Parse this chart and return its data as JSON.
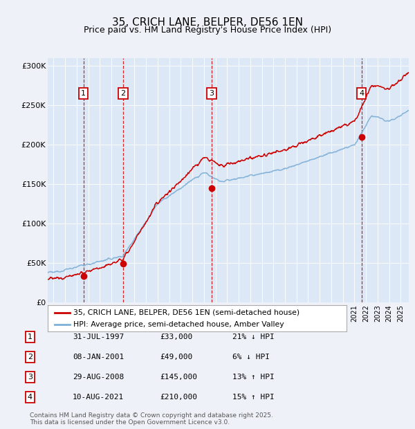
{
  "title_line1": "35, CRICH LANE, BELPER, DE56 1EN",
  "title_line2": "Price paid vs. HM Land Registry's House Price Index (HPI)",
  "ylim": [
    0,
    310000
  ],
  "yticks": [
    0,
    50000,
    100000,
    150000,
    200000,
    250000,
    300000
  ],
  "ytick_labels": [
    "£0",
    "£50K",
    "£100K",
    "£150K",
    "£200K",
    "£250K",
    "£300K"
  ],
  "background_color": "#eef2f8",
  "plot_bg_color": "#dce8f5",
  "sale_color": "#cc0000",
  "hpi_color": "#7fb0d8",
  "transactions": [
    {
      "date": 1997.58,
      "price": 33000,
      "label": "1"
    },
    {
      "date": 2001.02,
      "price": 49000,
      "label": "2"
    },
    {
      "date": 2008.66,
      "price": 145000,
      "label": "3"
    },
    {
      "date": 2021.61,
      "price": 210000,
      "label": "4"
    }
  ],
  "legend_entries": [
    "35, CRICH LANE, BELPER, DE56 1EN (semi-detached house)",
    "HPI: Average price, semi-detached house, Amber Valley"
  ],
  "table_rows": [
    [
      "1",
      "31-JUL-1997",
      "£33,000",
      "21% ↓ HPI"
    ],
    [
      "2",
      "08-JAN-2001",
      "£49,000",
      "6% ↓ HPI"
    ],
    [
      "3",
      "29-AUG-2008",
      "£145,000",
      "13% ↑ HPI"
    ],
    [
      "4",
      "10-AUG-2021",
      "£210,000",
      "15% ↑ HPI"
    ]
  ],
  "footer": "Contains HM Land Registry data © Crown copyright and database right 2025.\nThis data is licensed under the Open Government Licence v3.0.",
  "xmin": 1994.5,
  "xmax": 2025.7
}
